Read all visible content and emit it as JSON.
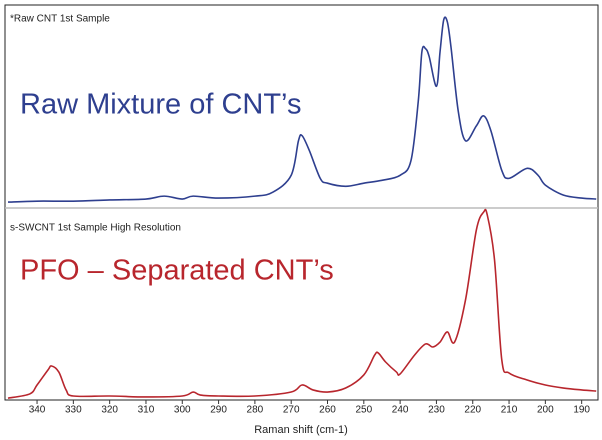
{
  "chart_data": [
    {
      "type": "line",
      "title": "*Raw CNT 1st Sample",
      "annotation": "Raw Mixture of CNT’s",
      "color": "#2e3f8f",
      "ylim": [
        0,
        100
      ],
      "x": [
        348,
        340,
        330,
        320,
        310,
        305,
        300,
        297,
        290,
        280,
        275,
        270,
        268,
        267,
        265,
        262,
        260,
        255,
        250,
        245,
        240,
        237,
        235,
        234,
        233,
        232,
        230,
        229,
        228,
        227,
        226,
        224,
        222,
        219,
        217,
        215,
        212,
        210,
        205,
        202,
        200,
        195,
        190,
        186
      ],
      "values": [
        1.5,
        2,
        2,
        2.6,
        3.1,
        4.6,
        3.1,
        4.6,
        3.6,
        4.6,
        6.7,
        15.4,
        33.3,
        35.9,
        28.2,
        13.8,
        11.3,
        9.7,
        11.3,
        12.8,
        15.4,
        23.1,
        53.8,
        79.5,
        81,
        76.9,
        61.5,
        79.5,
        95.9,
        94.9,
        82,
        48.7,
        33.3,
        41,
        46.2,
        38.5,
        17.9,
        13.8,
        19,
        15.4,
        10.3,
        5.1,
        3.6,
        3.1
      ]
    },
    {
      "type": "line",
      "title": "s-SWCNT 1st Sample High Resolution",
      "annotation": "PFO – Separated CNT’s",
      "color": "#b8262d",
      "ylim": [
        0,
        100
      ],
      "xlabel": "Raman shift (cm-1)",
      "xlim": [
        348,
        185.5
      ],
      "xticks": [
        340,
        330,
        320,
        310,
        300,
        290,
        280,
        270,
        260,
        250,
        240,
        230,
        220,
        210,
        200,
        190
      ],
      "x": [
        348,
        342,
        340,
        337,
        336,
        334,
        332,
        330,
        320,
        310,
        300,
        297,
        295,
        290,
        280,
        270,
        267,
        264,
        260,
        255,
        250,
        247,
        246,
        244,
        241,
        240,
        236,
        233,
        231,
        229,
        227,
        225,
        222,
        219,
        217,
        216,
        214,
        212,
        210,
        205,
        200,
        195,
        190,
        186
      ],
      "values": [
        1,
        3.2,
        7.9,
        15.8,
        17.9,
        14.7,
        5.3,
        2.1,
        2.1,
        1.6,
        2.1,
        4.2,
        2.6,
        2.1,
        2.1,
        4.2,
        7.9,
        5.3,
        4.2,
        6.3,
        13.2,
        23.7,
        24.7,
        20,
        14.7,
        13.7,
        23.7,
        29.5,
        27.9,
        30.5,
        35.8,
        30.5,
        52.6,
        89.5,
        98.9,
        97.4,
        73.7,
        21.1,
        14.2,
        10.5,
        7.9,
        6.3,
        5.3,
        4.7
      ]
    }
  ]
}
